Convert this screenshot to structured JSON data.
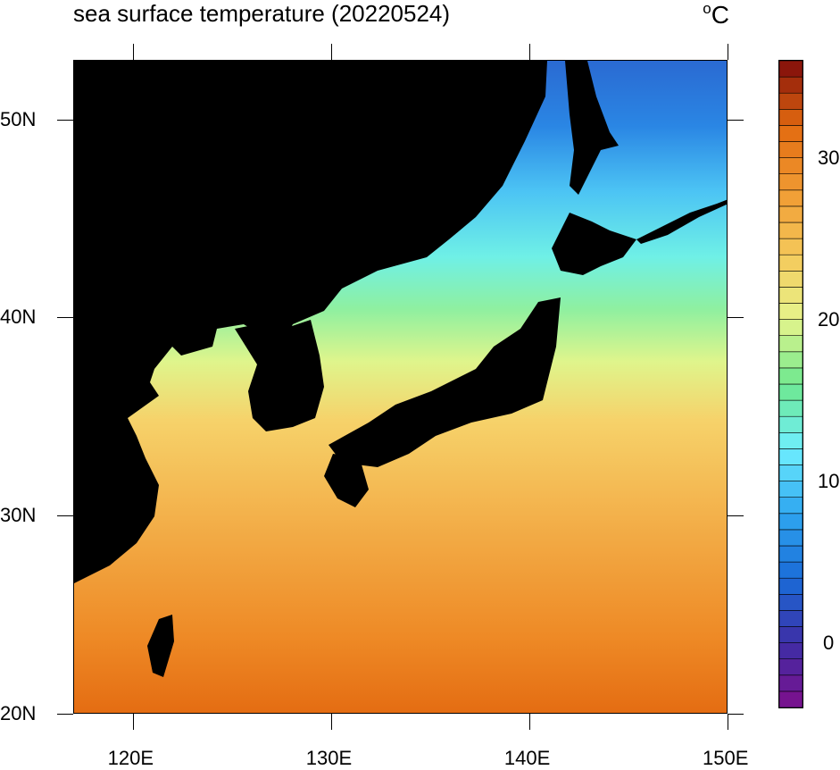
{
  "title": "sea surface temperature (20220524)",
  "unit": "C",
  "unit_degree": "o",
  "xaxis": {
    "ticks": [
      {
        "value": 120,
        "label": "120E"
      },
      {
        "value": 130,
        "label": "130E"
      },
      {
        "value": 140,
        "label": "140E"
      },
      {
        "value": 150,
        "label": "150E"
      }
    ],
    "range": [
      117,
      150
    ]
  },
  "yaxis": {
    "ticks": [
      {
        "value": 20,
        "label": "20N"
      },
      {
        "value": 30,
        "label": "30N"
      },
      {
        "value": 40,
        "label": "40N"
      },
      {
        "value": 50,
        "label": "50N"
      }
    ],
    "range": [
      20,
      53
    ]
  },
  "colorbar": {
    "range": [
      -4,
      36
    ],
    "ticks": [
      {
        "value": 0,
        "label": "0"
      },
      {
        "value": 10,
        "label": "10"
      },
      {
        "value": 20,
        "label": "20"
      },
      {
        "value": 30,
        "label": "30"
      }
    ],
    "stops": [
      {
        "value": -4,
        "color": "#7e0f8c"
      },
      {
        "value": 0,
        "color": "#3d2ea6"
      },
      {
        "value": 4,
        "color": "#1a6cd8"
      },
      {
        "value": 8,
        "color": "#2ea6f0"
      },
      {
        "value": 12,
        "color": "#6fefff"
      },
      {
        "value": 16,
        "color": "#6ee88f"
      },
      {
        "value": 20,
        "color": "#e6f58c"
      },
      {
        "value": 24,
        "color": "#f5c85a"
      },
      {
        "value": 28,
        "color": "#f09a32"
      },
      {
        "value": 32,
        "color": "#e26a10"
      },
      {
        "value": 36,
        "color": "#7e0a0a"
      }
    ]
  },
  "land_color": "#000000"
}
